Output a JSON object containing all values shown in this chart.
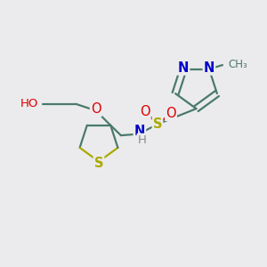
{
  "bg_color": "#ebebed",
  "bond_color": "#4a7a6a",
  "bond_lw": 1.6,
  "dbo": 0.012,
  "atom_colors": {
    "O": "#dd0000",
    "S": "#aaaa00",
    "N": "#0000cc",
    "H": "#888888",
    "C": "#4a7a6a"
  },
  "fs_large": 10.5,
  "fs_med": 9.5,
  "fs_small": 8.5
}
